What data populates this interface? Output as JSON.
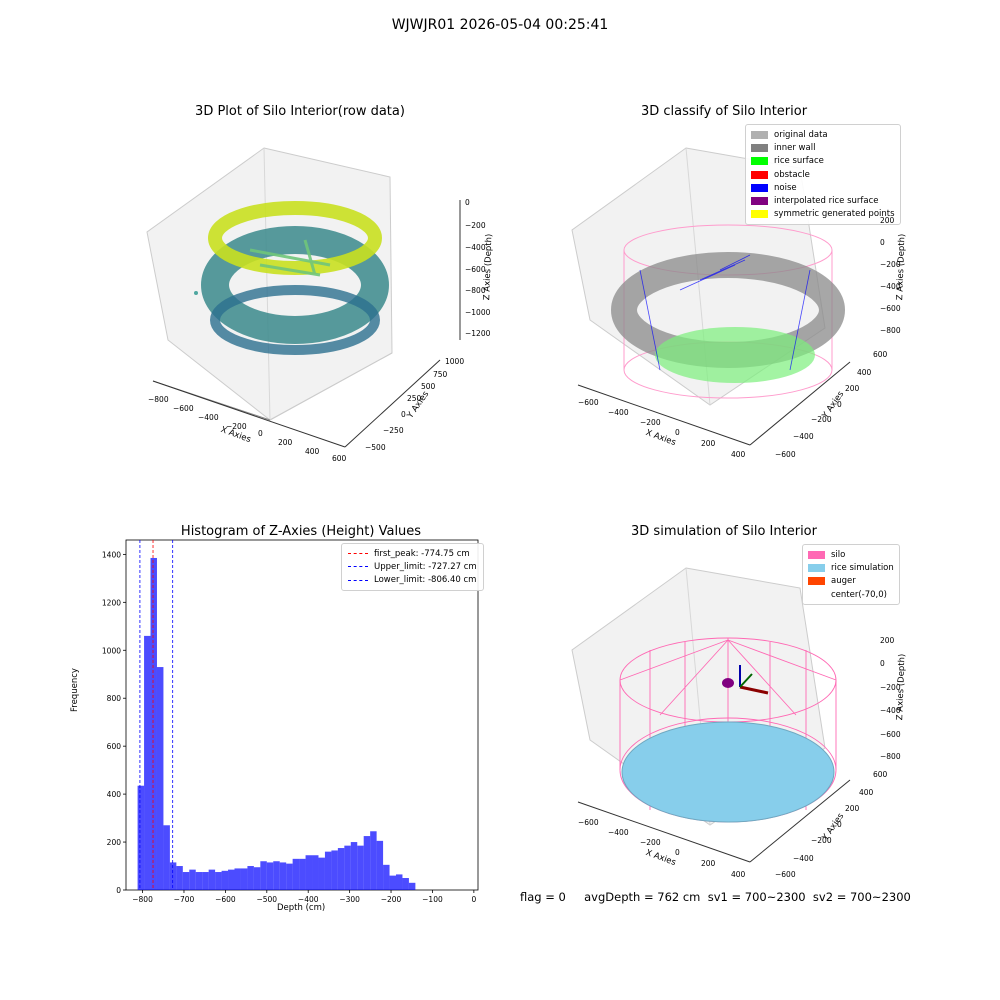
{
  "suptitle": "WJWJR01 2026-05-04 00:25:41",
  "panels": {
    "raw": {
      "title": "3D Plot of Silo Interior(row data)",
      "xlabel": "X Axies",
      "ylabel": "Y Axies",
      "zlabel": "Z Axies (Depth)",
      "xticks": [
        "−800",
        "−600",
        "−400",
        "−200",
        "0",
        "200",
        "400",
        "600"
      ],
      "yticks": [
        "−500",
        "−250",
        "0",
        "250",
        "500",
        "750",
        "1000"
      ],
      "zticks": [
        "0",
        "−200",
        "−400",
        "−600",
        "−800",
        "−1000",
        "−1200"
      ]
    },
    "classify": {
      "title": "3D classify of Silo Interior",
      "xlabel": "X Axies",
      "ylabel": "Y Axies",
      "zlabel": "Z Axies (Depth)",
      "xticks": [
        "−600",
        "−400",
        "−200",
        "0",
        "200",
        "400"
      ],
      "yticks": [
        "−600",
        "−400",
        "−200",
        "0",
        "200",
        "400",
        "600"
      ],
      "zticks": [
        "200",
        "0",
        "−200",
        "−400",
        "−600",
        "−800"
      ],
      "legend": [
        {
          "label": "original data",
          "color": "#b0b0b0"
        },
        {
          "label": "inner wall",
          "color": "#808080"
        },
        {
          "label": "rice surface",
          "color": "#00ff00"
        },
        {
          "label": "obstacle",
          "color": "#ff0000"
        },
        {
          "label": "noise",
          "color": "#0000ff"
        },
        {
          "label": "interpolated rice surface",
          "color": "#800080"
        },
        {
          "label": "symmetric generated points",
          "color": "#ffff00"
        }
      ]
    },
    "simulation": {
      "title": "3D simulation of Silo Interior",
      "xlabel": "X Axies",
      "ylabel": "Y Axies",
      "zlabel": "Z Axies (Depth)",
      "xticks": [
        "−600",
        "−400",
        "−200",
        "0",
        "200",
        "400"
      ],
      "yticks": [
        "−600",
        "−400",
        "−200",
        "0",
        "200",
        "400",
        "600"
      ],
      "zticks": [
        "200",
        "0",
        "−200",
        "−400",
        "−600",
        "−800"
      ],
      "legend": [
        {
          "label": "silo",
          "color": "#ff69b4"
        },
        {
          "label": "rice simulation",
          "color": "#87ceeb"
        },
        {
          "label": "auger",
          "color": "#ff4500"
        },
        {
          "label": "center(-70,0)",
          "color": ""
        }
      ]
    }
  },
  "status_text": "flag = 0     avgDepth = 762 cm  sv1 = 700~2300  sv2 = 700~2300",
  "chart_data": {
    "type": "bar",
    "title": "Histogram of Z-Axies (Height) Values",
    "xlabel": "Depth (cm)",
    "ylabel": "Frequency",
    "xlim": [
      -840,
      10
    ],
    "ylim": [
      0,
      1460
    ],
    "xticks": [
      -800,
      -700,
      -600,
      -500,
      -400,
      -300,
      -200,
      -100,
      0
    ],
    "yticks": [
      0,
      200,
      400,
      600,
      800,
      1000,
      1200,
      1400
    ],
    "bin_start": -812,
    "bin_width": 15.6,
    "values": [
      435,
      1060,
      1385,
      930,
      270,
      115,
      100,
      75,
      85,
      75,
      75,
      85,
      75,
      80,
      85,
      90,
      90,
      100,
      95,
      120,
      115,
      120,
      115,
      110,
      130,
      130,
      145,
      145,
      135,
      160,
      165,
      175,
      185,
      200,
      185,
      225,
      245,
      205,
      105,
      60,
      65,
      50,
      30
    ],
    "bar_color": "#0000ff",
    "vlines": [
      {
        "label": "first_peak: -774.75 cm",
        "x": -774.75,
        "color": "#ff0000"
      },
      {
        "label": "Upper_limit: -727.27 cm",
        "x": -727.27,
        "color": "#0000ff"
      },
      {
        "label": "Lower_limit: -806.40 cm",
        "x": -806.4,
        "color": "#0000ff"
      }
    ]
  }
}
